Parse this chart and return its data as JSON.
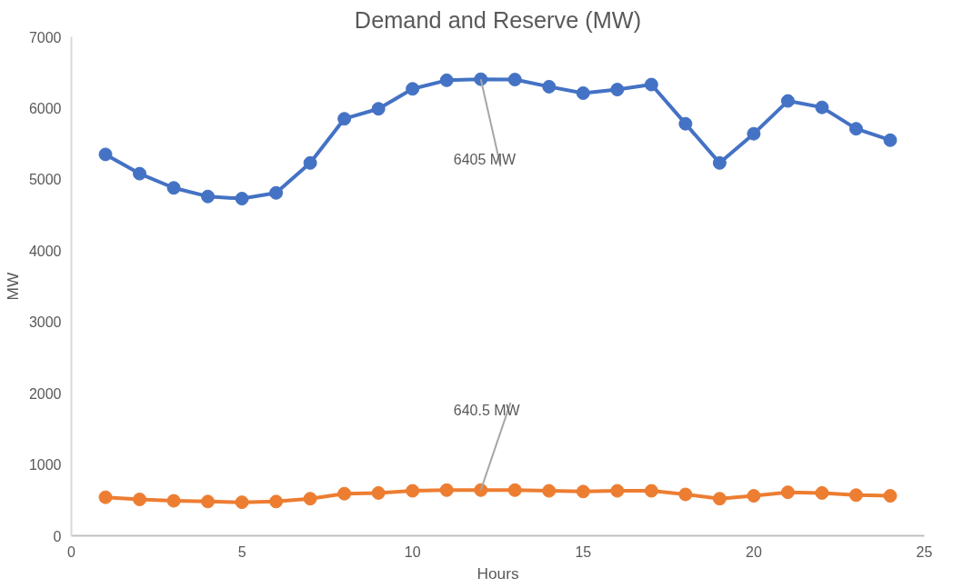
{
  "chart_data": {
    "type": "line",
    "title": "Demand and Reserve (MW)",
    "xlabel": "Hours",
    "ylabel": "MW",
    "x": [
      1,
      2,
      3,
      4,
      5,
      6,
      7,
      8,
      9,
      10,
      11,
      12,
      13,
      14,
      15,
      16,
      17,
      18,
      19,
      20,
      21,
      22,
      23,
      24
    ],
    "series": [
      {
        "color": "#4472c4",
        "values": [
          5350,
          5080,
          4880,
          4760,
          4730,
          4810,
          5230,
          5850,
          5990,
          6270,
          6390,
          6405,
          6400,
          6300,
          6210,
          6260,
          6330,
          5780,
          5230,
          5640,
          6100,
          6010,
          5710,
          5550
        ]
      },
      {
        "color": "#ed7d31",
        "values": [
          540,
          510,
          490,
          480,
          470,
          480,
          520,
          590,
          600,
          630,
          640,
          640.5,
          640,
          630,
          620,
          630,
          630,
          580,
          520,
          560,
          610,
          600,
          570,
          560
        ]
      }
    ],
    "annotations": [
      {
        "text": "6405 MW",
        "x": 12,
        "y": 6405
      },
      {
        "text": "640.5 MW",
        "x": 12,
        "y": 640.5
      }
    ],
    "xlim": [
      0,
      25
    ],
    "xticks": [
      0,
      5,
      10,
      15,
      20,
      25
    ],
    "ylim": [
      0,
      7000
    ],
    "yticks": [
      0,
      1000,
      2000,
      3000,
      4000,
      5000,
      6000,
      7000
    ],
    "grid": false,
    "marker": "circle",
    "line_style": "solid"
  }
}
